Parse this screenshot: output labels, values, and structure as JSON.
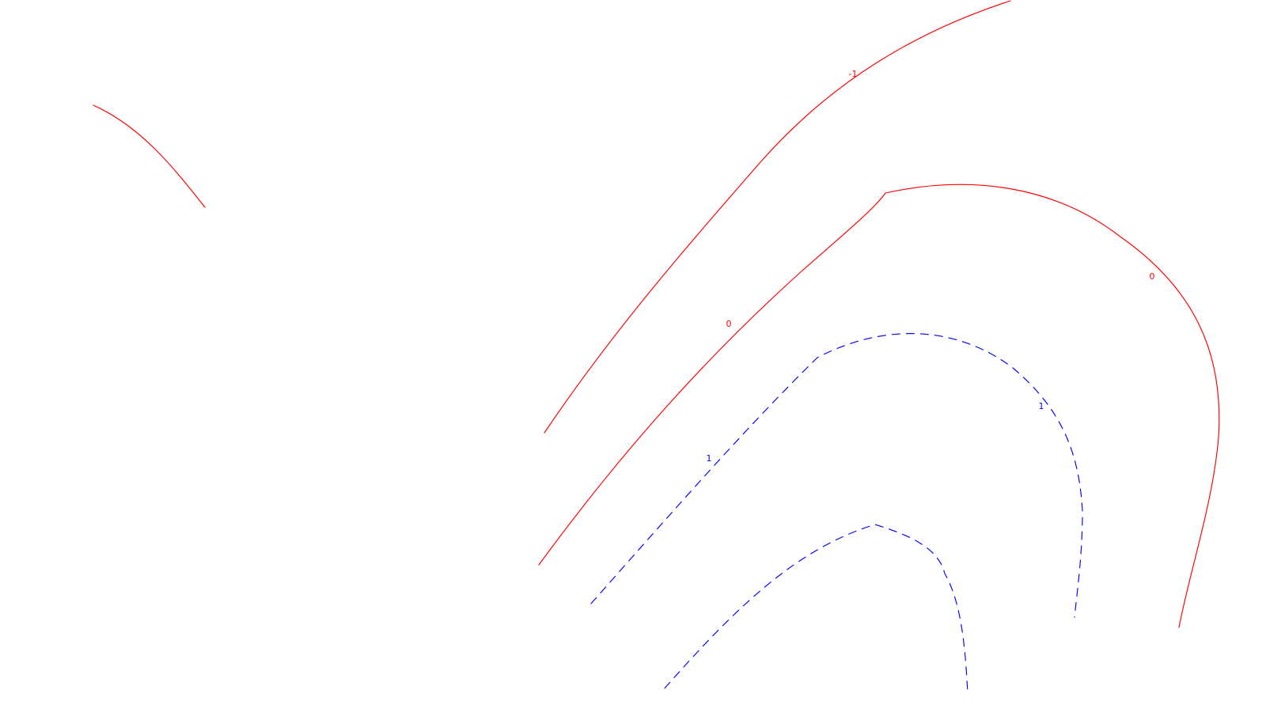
{
  "chart_data": {
    "type": "contour",
    "title": "",
    "xlabel": "",
    "ylabel": "",
    "grid": false,
    "legend": false,
    "levels": [
      {
        "value": -1,
        "label": "-1",
        "color": "#ff0000",
        "style": "solid"
      },
      {
        "value": 0,
        "label": "0",
        "color": "#ff0000",
        "style": "solid"
      },
      {
        "value": 1,
        "label": "1",
        "color": "#0000ff",
        "style": "dashed"
      }
    ],
    "labels": [
      {
        "text": "-1",
        "level": -1
      },
      {
        "text": "0",
        "level": 0
      },
      {
        "text": "0",
        "level": 0
      },
      {
        "text": "1",
        "level": 1
      },
      {
        "text": "1",
        "level": 1
      }
    ]
  }
}
